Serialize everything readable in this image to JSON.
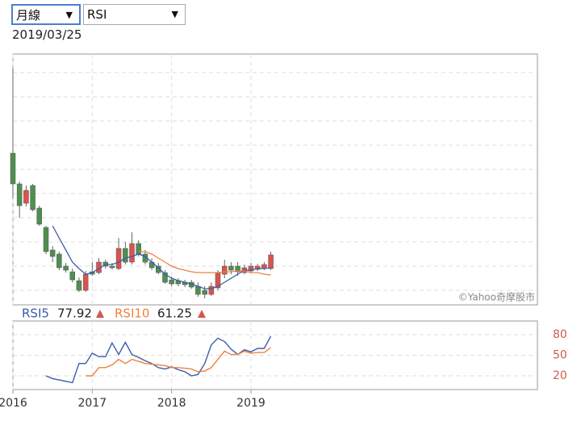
{
  "controls": {
    "period": "月線",
    "indicator": "RSI"
  },
  "date": "2019/03/25",
  "chart_data": [
    {
      "type": "candlestick",
      "annotation": "©Yahoo奇摩股市",
      "x": [
        2016,
        2016.083,
        2016.167,
        2016.25,
        2016.333,
        2016.417,
        2016.5,
        2016.583,
        2016.667,
        2016.75,
        2016.833,
        2016.917,
        2017,
        2017.083,
        2017.167,
        2017.25,
        2017.333,
        2017.417,
        2017.5,
        2017.583,
        2017.667,
        2017.75,
        2017.833,
        2017.917,
        2018,
        2018.083,
        2018.167,
        2018.25,
        2018.333,
        2018.417,
        2018.5,
        2018.583,
        2018.667,
        2018.75,
        2018.833,
        2018.917,
        2019,
        2019.083,
        2019.167,
        2019.25
      ],
      "open": [
        188,
        150,
        126,
        148,
        120,
        96,
        68,
        63,
        48,
        41,
        30,
        18,
        41,
        40,
        53,
        48,
        45,
        70,
        53,
        76,
        63,
        53,
        48,
        40,
        31,
        30,
        28,
        28,
        23,
        18,
        13,
        21,
        38,
        48,
        48,
        40,
        42,
        44,
        45,
        45
      ],
      "high": [
        293,
        153,
        148,
        150,
        123,
        98,
        73,
        66,
        52,
        45,
        34,
        42,
        53,
        58,
        56,
        52,
        83,
        78,
        90,
        80,
        68,
        58,
        52,
        43,
        35,
        33,
        31,
        31,
        28,
        23,
        28,
        43,
        56,
        53,
        53,
        50,
        52,
        51,
        53,
        66
      ],
      "low": [
        133,
        108,
        122,
        116,
        98,
        63,
        53,
        43,
        40,
        28,
        16,
        16,
        36,
        38,
        45,
        44,
        43,
        50,
        50,
        60,
        50,
        43,
        38,
        26,
        23,
        23,
        22,
        20,
        10,
        8,
        11,
        18,
        33,
        38,
        36,
        38,
        40,
        42,
        43,
        43
      ],
      "close": [
        150,
        123,
        142,
        118,
        100,
        66,
        60,
        46,
        43,
        31,
        18,
        38,
        38,
        53,
        48,
        46,
        70,
        53,
        76,
        63,
        53,
        46,
        40,
        28,
        26,
        26,
        25,
        22,
        13,
        13,
        23,
        40,
        48,
        43,
        41,
        46,
        48,
        48,
        50,
        62
      ],
      "up_color": "#d9534f",
      "down_color": "#4f8f4f",
      "series": [
        {
          "color": "#3a5da8",
          "values": [
            null,
            null,
            null,
            null,
            null,
            null,
            98,
            83,
            68,
            53,
            45,
            38,
            40,
            45,
            50,
            50,
            53,
            58,
            60,
            63,
            60,
            53,
            46,
            38,
            33,
            30,
            28,
            26,
            23,
            20,
            20,
            23,
            28,
            33,
            38,
            43,
            43,
            45,
            45,
            46
          ]
        },
        {
          "color": "#f08040",
          "values": [
            null,
            null,
            null,
            null,
            null,
            null,
            null,
            null,
            null,
            null,
            null,
            null,
            null,
            null,
            null,
            null,
            null,
            null,
            null,
            66,
            66,
            63,
            58,
            53,
            48,
            45,
            43,
            41,
            40,
            40,
            40,
            40,
            41,
            41,
            42,
            42,
            40,
            40,
            38,
            37
          ]
        }
      ],
      "xlim": [
        2016,
        2022.61
      ],
      "ylim": [
        0,
        311
      ],
      "grid": true
    },
    {
      "type": "line",
      "x": [
        2016,
        2016.083,
        2016.167,
        2016.25,
        2016.333,
        2016.417,
        2016.5,
        2016.583,
        2016.667,
        2016.75,
        2016.833,
        2016.917,
        2017,
        2017.083,
        2017.167,
        2017.25,
        2017.333,
        2017.417,
        2017.5,
        2017.583,
        2017.667,
        2017.75,
        2017.833,
        2017.917,
        2018,
        2018.083,
        2018.167,
        2018.25,
        2018.333,
        2018.417,
        2018.5,
        2018.583,
        2018.667,
        2018.75,
        2018.833,
        2018.917,
        2019,
        2019.083,
        2019.167,
        2019.25
      ],
      "series": [
        {
          "name": "RSI5",
          "color": "#3a5da8",
          "values": [
            null,
            null,
            null,
            null,
            null,
            20,
            16,
            14,
            12,
            10,
            38,
            38,
            53,
            48,
            48,
            68,
            51,
            69,
            51,
            47,
            42,
            38,
            32,
            30,
            33,
            29,
            26,
            20,
            22,
            38,
            65,
            75,
            70,
            59,
            51,
            58,
            55,
            60,
            60,
            77.92
          ]
        },
        {
          "name": "RSI10",
          "color": "#f08040",
          "values": [
            null,
            null,
            null,
            null,
            null,
            null,
            null,
            null,
            null,
            null,
            null,
            20,
            20,
            32,
            32,
            36,
            44,
            38,
            44,
            41,
            38,
            37,
            36,
            35,
            32,
            32,
            31,
            30,
            26,
            27,
            32,
            44,
            56,
            51,
            51,
            56,
            53,
            54,
            54,
            61.25
          ]
        }
      ],
      "xlim": [
        2016,
        2022.61
      ],
      "xticks": [
        2016,
        2017,
        2018,
        2019
      ],
      "ylim": [
        0,
        100
      ],
      "yticks": [
        20,
        50,
        80
      ],
      "ytick_color": "#d05a4a",
      "grid": true
    }
  ]
}
